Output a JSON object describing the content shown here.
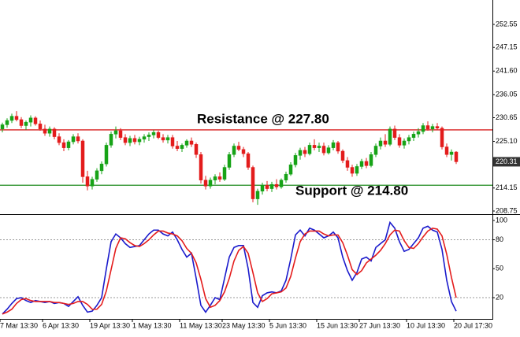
{
  "chart_data": [
    {
      "type": "candlestick",
      "open": [
        228.0,
        229.0,
        230.0,
        231.0,
        230.2,
        228.8,
        229.6,
        230.6,
        229.2,
        228.0,
        227.0,
        228.0,
        226.2,
        224.8,
        223.6,
        225.0,
        226.2,
        225.2,
        216.8,
        214.6,
        216.2,
        218.2,
        219.8,
        224.2,
        226.8,
        227.6,
        226.0,
        224.8,
        225.8,
        225.0,
        225.6,
        226.2,
        226.6,
        227.2,
        226.0,
        225.4,
        226.0,
        224.0,
        223.4,
        224.2,
        225.2,
        224.4,
        222.0,
        216.0,
        214.6,
        216.0,
        216.8,
        216.2,
        219.0,
        222.0,
        224.0,
        223.2,
        222.2,
        219.0,
        211.6,
        213.4,
        214.8,
        214.0,
        215.0,
        214.4,
        216.0,
        217.4,
        219.6,
        221.8,
        223.0,
        222.2,
        224.2,
        223.6,
        224.0,
        222.4,
        223.6,
        224.8,
        222.8,
        220.6,
        219.0,
        217.6,
        219.2,
        220.4,
        219.4,
        222.0,
        224.0,
        225.2,
        224.4,
        228.0,
        226.0,
        224.2,
        225.2,
        226.0,
        226.8,
        227.4,
        228.8,
        228.0,
        228.6,
        228.2,
        223.8,
        222.0,
        222.6
      ],
      "high": [
        229.5,
        230.5,
        231.6,
        232.2,
        230.8,
        230.0,
        231.2,
        231.0,
        230.0,
        229.0,
        228.6,
        228.4,
        227.0,
        225.6,
        225.4,
        226.8,
        227.0,
        225.6,
        218.2,
        216.8,
        218.8,
        220.4,
        224.8,
        227.4,
        228.6,
        228.2,
        226.8,
        226.4,
        226.6,
        226.2,
        226.8,
        227.2,
        227.8,
        227.6,
        226.8,
        226.6,
        226.6,
        225.2,
        224.6,
        225.6,
        226.0,
        224.8,
        222.6,
        217.0,
        216.6,
        217.4,
        217.8,
        219.6,
        222.6,
        224.6,
        225.0,
        223.8,
        222.6,
        219.4,
        214.0,
        215.4,
        215.8,
        215.6,
        216.2,
        216.4,
        218.0,
        220.2,
        222.4,
        223.6,
        223.8,
        224.8,
        225.6,
        224.8,
        224.8,
        224.2,
        225.4,
        225.2,
        223.2,
        221.4,
        219.6,
        219.8,
        221.0,
        221.2,
        222.6,
        224.6,
        226.0,
        226.8,
        228.6,
        228.8,
        226.8,
        225.8,
        226.6,
        227.4,
        228.2,
        229.4,
        229.8,
        229.2,
        229.4,
        228.6,
        224.6,
        223.2,
        222.8
      ],
      "low": [
        227.2,
        228.3,
        229.4,
        229.8,
        228.2,
        227.8,
        228.6,
        228.8,
        227.6,
        226.4,
        226.2,
        225.6,
        224.2,
        222.8,
        223.0,
        224.4,
        224.6,
        215.4,
        213.6,
        213.8,
        215.6,
        217.4,
        219.2,
        223.6,
        225.8,
        225.4,
        224.2,
        224.0,
        224.4,
        224.2,
        224.8,
        225.2,
        225.8,
        225.6,
        224.8,
        224.6,
        223.4,
        222.8,
        222.6,
        223.6,
        223.8,
        221.2,
        215.2,
        213.8,
        214.0,
        215.0,
        215.6,
        215.8,
        218.4,
        221.4,
        222.8,
        221.4,
        218.4,
        210.8,
        210.2,
        212.6,
        213.4,
        213.2,
        213.8,
        214.0,
        215.4,
        217.0,
        219.0,
        220.8,
        221.4,
        221.8,
        223.0,
        222.6,
        221.8,
        222.0,
        223.0,
        222.2,
        220.0,
        218.2,
        216.8,
        217.0,
        218.6,
        218.8,
        219.0,
        221.4,
        223.2,
        223.8,
        224.0,
        225.4,
        223.6,
        223.4,
        224.4,
        225.2,
        226.0,
        226.8,
        227.6,
        227.2,
        227.8,
        223.2,
        221.4,
        220.6,
        219.8
      ],
      "close": [
        229.0,
        230.0,
        231.0,
        230.2,
        228.8,
        229.6,
        230.6,
        229.2,
        228.0,
        227.0,
        228.0,
        226.2,
        224.8,
        223.6,
        225.0,
        226.2,
        225.2,
        216.8,
        214.6,
        216.2,
        218.2,
        219.8,
        224.2,
        226.8,
        227.6,
        226.0,
        224.8,
        225.8,
        225.0,
        225.6,
        226.2,
        226.6,
        227.2,
        226.0,
        225.4,
        226.0,
        224.0,
        223.4,
        224.2,
        225.2,
        224.4,
        222.0,
        216.0,
        214.6,
        216.0,
        216.8,
        216.2,
        219.0,
        222.0,
        224.0,
        223.2,
        222.2,
        219.0,
        211.6,
        213.4,
        214.8,
        214.0,
        215.0,
        214.4,
        216.0,
        217.4,
        219.6,
        221.8,
        223.0,
        222.2,
        224.2,
        223.6,
        224.0,
        222.4,
        223.6,
        224.8,
        222.8,
        220.6,
        219.0,
        217.6,
        219.2,
        220.4,
        219.4,
        222.0,
        224.0,
        225.2,
        224.4,
        228.0,
        226.0,
        224.2,
        225.2,
        226.0,
        226.8,
        227.4,
        228.8,
        228.0,
        228.6,
        228.2,
        223.8,
        222.0,
        222.6,
        220.31
      ],
      "up_color": "#17a317",
      "down_color": "#e31c1c",
      "ylim": [
        208.01,
        258.28
      ],
      "yticks": [
        252.55,
        247.15,
        {
          "value": 241.6,
          "label": "241.60"
        },
        236.05,
        230.65,
        {
          "value": 225.1,
          "label": "225.10"
        },
        214.15,
        208.75
      ],
      "last_price": 220.31,
      "hlines": [
        {
          "label": "Resistance @ 227.80",
          "value": 227.8,
          "color": "#d81e1e"
        },
        {
          "label": "Support @ 214.80",
          "value": 214.8,
          "color": "#1c8a1c"
        }
      ]
    },
    {
      "type": "line",
      "categories": [
        "7 Mar 13:30",
        null,
        null,
        null,
        null,
        null,
        null,
        null,
        null,
        "6 Apr 13:30",
        null,
        null,
        null,
        null,
        null,
        null,
        null,
        null,
        null,
        "19 Apr 13:30",
        null,
        null,
        null,
        null,
        null,
        null,
        null,
        null,
        "1 May 13:30",
        null,
        null,
        null,
        null,
        null,
        null,
        null,
        null,
        null,
        "11 May 13:30",
        null,
        null,
        null,
        null,
        null,
        null,
        null,
        null,
        "23 May 13:30",
        null,
        null,
        null,
        null,
        null,
        null,
        null,
        null,
        null,
        "5 Jun 13:30",
        null,
        null,
        null,
        null,
        null,
        null,
        null,
        null,
        null,
        "15 Jun 13:30",
        null,
        null,
        null,
        null,
        null,
        null,
        null,
        null,
        "27 Jun 13:30",
        null,
        null,
        null,
        null,
        null,
        null,
        null,
        null,
        null,
        "10 Jul 13:30",
        null,
        null,
        null,
        null,
        null,
        null,
        null,
        null,
        null,
        "20 Jul 17:30"
      ],
      "series": [
        {
          "color": "#1a1acc",
          "values": [
            3,
            8,
            14,
            19,
            20,
            17,
            15,
            17,
            16,
            15,
            16,
            14,
            15,
            14,
            11,
            16,
            21,
            12,
            5,
            6,
            12,
            20,
            50,
            78,
            86,
            82,
            76,
            72,
            73,
            74,
            80,
            86,
            90,
            90,
            86,
            84,
            88,
            80,
            70,
            62,
            66,
            40,
            12,
            5,
            12,
            20,
            18,
            40,
            62,
            72,
            74,
            74,
            50,
            15,
            10,
            22,
            25,
            26,
            25,
            27,
            38,
            60,
            85,
            90,
            84,
            92,
            90,
            86,
            82,
            84,
            88,
            82,
            62,
            48,
            38,
            46,
            60,
            62,
            58,
            72,
            76,
            80,
            98,
            92,
            78,
            68,
            70,
            76,
            82,
            92,
            94,
            90,
            88,
            70,
            38,
            16,
            6
          ]
        },
        {
          "color": "#e41c1c",
          "values": [
            3,
            5,
            8,
            14,
            18,
            19,
            17,
            16,
            16,
            16,
            16,
            15,
            15,
            14,
            13,
            14,
            16,
            16,
            13,
            8,
            8,
            13,
            27,
            49,
            71,
            82,
            81,
            77,
            74,
            73,
            76,
            80,
            85,
            89,
            89,
            87,
            86,
            84,
            79,
            71,
            66,
            56,
            39,
            19,
            10,
            12,
            17,
            26,
            40,
            58,
            69,
            73,
            66,
            46,
            25,
            16,
            19,
            24,
            25,
            26,
            30,
            42,
            61,
            78,
            86,
            89,
            89,
            89,
            86,
            84,
            85,
            85,
            77,
            64,
            49,
            44,
            48,
            56,
            60,
            64,
            69,
            76,
            85,
            90,
            89,
            79,
            72,
            71,
            76,
            83,
            89,
            92,
            91,
            84,
            65,
            41,
            20
          ]
        }
      ],
      "ylim": [
        -2,
        105.7
      ],
      "yticks": [
        100,
        80,
        50,
        20
      ],
      "levels": [
        80,
        20
      ]
    }
  ]
}
